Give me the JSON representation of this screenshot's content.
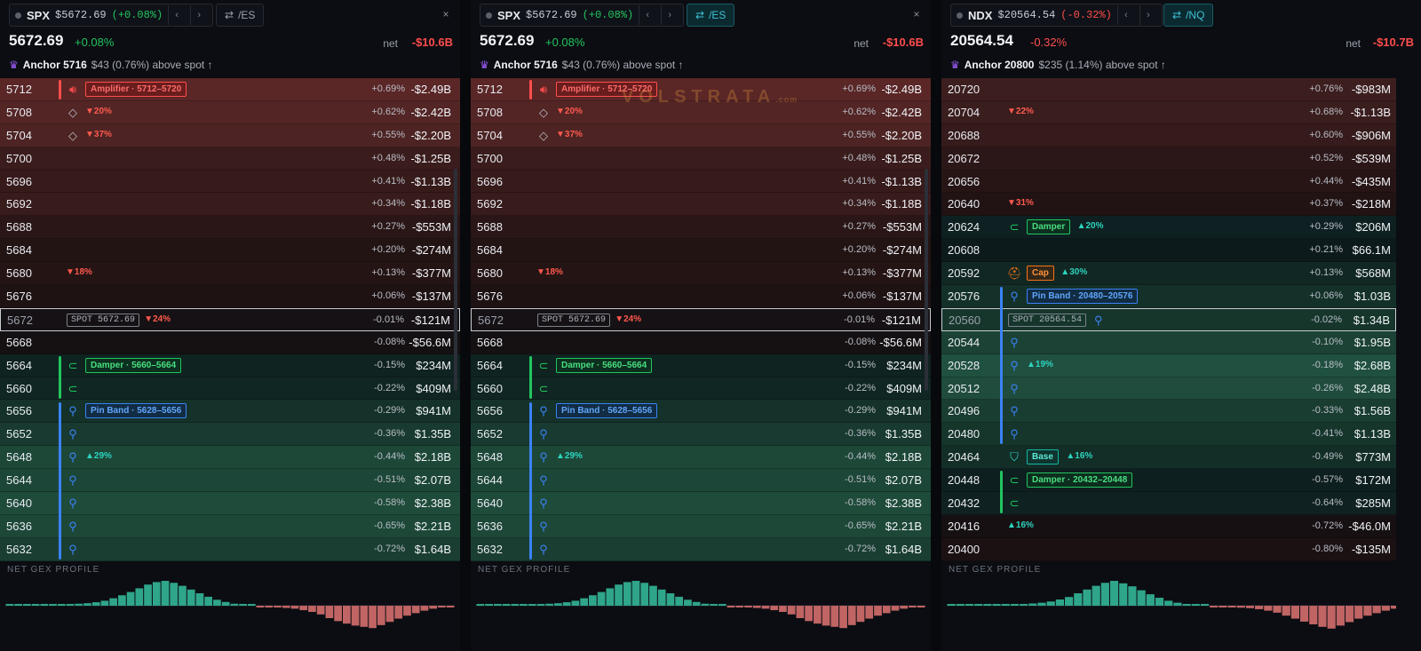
{
  "panels": [
    {
      "tab": {
        "symbol": "SPX",
        "price": "$5672.69",
        "change": "(+0.08%)",
        "change_color": "#22c55e",
        "prev": "‹",
        "next": "›"
      },
      "futures": {
        "label": "/ES",
        "icon": "⇄",
        "active": false
      },
      "close": "×",
      "header": {
        "price": "5672.69",
        "change": "+0.08%",
        "change_color": "#22c55e",
        "net_label": "net",
        "net_value": "-$10.6B"
      },
      "anchor": {
        "icon": "♛",
        "label": "Anchor 5716",
        "detail": "$43 (0.76%) above spot ↑"
      },
      "watermark": "",
      "rows": [
        {
          "strike": "5712",
          "pct": "+0.69%",
          "gex": "-$2.49B",
          "bg": "#5a2626",
          "icon": "speaker-icon",
          "tag": {
            "kind": "amp",
            "text": "Amplifier · 5712–5720"
          }
        },
        {
          "strike": "5708",
          "pct": "+0.62%",
          "gex": "-$2.42B",
          "bg": "#532525",
          "icon": "diamond-icon",
          "arrow": {
            "dir": "dn",
            "text": "▼20%"
          }
        },
        {
          "strike": "5704",
          "pct": "+0.55%",
          "gex": "-$2.20B",
          "bg": "#4d2423",
          "icon": "diamond-icon",
          "arrow": {
            "dir": "dn",
            "text": "▼37%"
          }
        },
        {
          "strike": "5700",
          "pct": "+0.48%",
          "gex": "-$1.25B",
          "bg": "#3a1c1c"
        },
        {
          "strike": "5696",
          "pct": "+0.41%",
          "gex": "-$1.13B",
          "bg": "#371b1b"
        },
        {
          "strike": "5692",
          "pct": "+0.34%",
          "gex": "-$1.18B",
          "bg": "#381b1b"
        },
        {
          "strike": "5688",
          "pct": "+0.27%",
          "gex": "-$553M",
          "bg": "#2a1616"
        },
        {
          "strike": "5684",
          "pct": "+0.20%",
          "gex": "-$274M",
          "bg": "#231414"
        },
        {
          "strike": "5680",
          "pct": "+0.13%",
          "gex": "-$377M",
          "bg": "#251414",
          "arrow": {
            "dir": "dn",
            "text": "▼18%"
          }
        },
        {
          "strike": "5676",
          "pct": "+0.06%",
          "gex": "-$137M",
          "bg": "#1e1213"
        },
        {
          "strike": "5672",
          "pct": "-0.01%",
          "gex": "-$121M",
          "bg": "#161114",
          "spot": "SPOT 5672.69",
          "arrow": {
            "dir": "dn",
            "text": "▼24%"
          }
        },
        {
          "strike": "5668",
          "pct": "-0.08%",
          "gex": "-$56.6M",
          "bg": "#151113"
        },
        {
          "strike": "5664",
          "pct": "-0.15%",
          "gex": "$234M",
          "bg": "#0f2320",
          "icon": "magnet-icon",
          "tag": {
            "kind": "damp",
            "text": "Damper · 5660–5664"
          }
        },
        {
          "strike": "5660",
          "pct": "-0.22%",
          "gex": "$409M",
          "bg": "#102622",
          "icon": "magnet-icon"
        },
        {
          "strike": "5656",
          "pct": "-0.29%",
          "gex": "$941M",
          "bg": "#143229",
          "icon": "pin-icon",
          "tag": {
            "kind": "pin",
            "text": "Pin Band · 5628–5656"
          }
        },
        {
          "strike": "5652",
          "pct": "-0.36%",
          "gex": "$1.35B",
          "bg": "#183a30",
          "icon": "pin-icon"
        },
        {
          "strike": "5648",
          "pct": "-0.44%",
          "gex": "$2.18B",
          "bg": "#1d4838",
          "icon": "pin-icon",
          "arrow": {
            "dir": "up",
            "text": "▲29%"
          }
        },
        {
          "strike": "5644",
          "pct": "-0.51%",
          "gex": "$2.07B",
          "bg": "#1c4637",
          "icon": "pin-icon"
        },
        {
          "strike": "5640",
          "pct": "-0.58%",
          "gex": "$2.38B",
          "bg": "#1f4b3a",
          "icon": "pin-icon"
        },
        {
          "strike": "5636",
          "pct": "-0.65%",
          "gex": "$2.21B",
          "bg": "#1d4838",
          "icon": "pin-icon"
        },
        {
          "strike": "5632",
          "pct": "-0.72%",
          "gex": "$1.64B",
          "bg": "#1a3f32",
          "icon": "pin-icon"
        }
      ],
      "bars": [
        {
          "kind": "damp",
          "from": 12,
          "to": 13
        },
        {
          "kind": "pin",
          "from": 14,
          "to": 20
        },
        {
          "kind": "amp",
          "from": 0,
          "to": 0
        }
      ],
      "profile_label": "NET GEX PROFILE",
      "histogram": [
        0.02,
        0.03,
        0.02,
        0.04,
        0.03,
        0.05,
        0.04,
        0.06,
        0.08,
        0.1,
        0.14,
        0.2,
        0.3,
        0.42,
        0.55,
        0.7,
        0.85,
        0.95,
        1.0,
        0.92,
        0.8,
        0.65,
        0.5,
        0.36,
        0.24,
        0.15,
        0.08,
        0.04,
        0.02,
        -0.02,
        -0.04,
        -0.06,
        -0.09,
        -0.12,
        -0.18,
        -0.25,
        -0.35,
        -0.5,
        -0.62,
        -0.72,
        -0.8,
        -0.85,
        -0.9,
        -0.78,
        -0.65,
        -0.52,
        -0.4,
        -0.3,
        -0.2,
        -0.12,
        -0.06,
        -0.03
      ]
    },
    {
      "tab": {
        "symbol": "SPX",
        "price": "$5672.69",
        "change": "(+0.08%)",
        "change_color": "#22c55e",
        "prev": "‹",
        "next": "›"
      },
      "futures": {
        "label": "/ES",
        "icon": "⇄",
        "active": true
      },
      "close": "×",
      "header": {
        "price": "5672.69",
        "change": "+0.08%",
        "change_color": "#22c55e",
        "net_label": "net",
        "net_value": "-$10.6B"
      },
      "anchor": {
        "icon": "♛",
        "label": "Anchor 5716",
        "detail": "$43 (0.76%) above spot ↑"
      },
      "watermark": "VOLSTRATA",
      "watermark_sub": ".com",
      "rows": [
        {
          "strike": "5712",
          "pct": "+0.69%",
          "gex": "-$2.49B",
          "bg": "#5a2626",
          "icon": "speaker-icon",
          "tag": {
            "kind": "amp",
            "text": "Amplifier · 5712–5720"
          }
        },
        {
          "strike": "5708",
          "pct": "+0.62%",
          "gex": "-$2.42B",
          "bg": "#532525",
          "icon": "diamond-icon",
          "arrow": {
            "dir": "dn",
            "text": "▼20%"
          }
        },
        {
          "strike": "5704",
          "pct": "+0.55%",
          "gex": "-$2.20B",
          "bg": "#4d2423",
          "icon": "diamond-icon",
          "arrow": {
            "dir": "dn",
            "text": "▼37%"
          }
        },
        {
          "strike": "5700",
          "pct": "+0.48%",
          "gex": "-$1.25B",
          "bg": "#3a1c1c"
        },
        {
          "strike": "5696",
          "pct": "+0.41%",
          "gex": "-$1.13B",
          "bg": "#371b1b"
        },
        {
          "strike": "5692",
          "pct": "+0.34%",
          "gex": "-$1.18B",
          "bg": "#381b1b"
        },
        {
          "strike": "5688",
          "pct": "+0.27%",
          "gex": "-$553M",
          "bg": "#2a1616"
        },
        {
          "strike": "5684",
          "pct": "+0.20%",
          "gex": "-$274M",
          "bg": "#231414"
        },
        {
          "strike": "5680",
          "pct": "+0.13%",
          "gex": "-$377M",
          "bg": "#251414",
          "arrow": {
            "dir": "dn",
            "text": "▼18%"
          }
        },
        {
          "strike": "5676",
          "pct": "+0.06%",
          "gex": "-$137M",
          "bg": "#1e1213"
        },
        {
          "strike": "5672",
          "pct": "-0.01%",
          "gex": "-$121M",
          "bg": "#161114",
          "spot": "SPOT 5672.69",
          "arrow": {
            "dir": "dn",
            "text": "▼24%"
          }
        },
        {
          "strike": "5668",
          "pct": "-0.08%",
          "gex": "-$56.6M",
          "bg": "#151113"
        },
        {
          "strike": "5664",
          "pct": "-0.15%",
          "gex": "$234M",
          "bg": "#0f2320",
          "icon": "magnet-icon",
          "tag": {
            "kind": "damp",
            "text": "Damper · 5660–5664"
          }
        },
        {
          "strike": "5660",
          "pct": "-0.22%",
          "gex": "$409M",
          "bg": "#102622",
          "icon": "magnet-icon"
        },
        {
          "strike": "5656",
          "pct": "-0.29%",
          "gex": "$941M",
          "bg": "#143229",
          "icon": "pin-icon",
          "tag": {
            "kind": "pin",
            "text": "Pin Band · 5628–5656"
          }
        },
        {
          "strike": "5652",
          "pct": "-0.36%",
          "gex": "$1.35B",
          "bg": "#183a30",
          "icon": "pin-icon"
        },
        {
          "strike": "5648",
          "pct": "-0.44%",
          "gex": "$2.18B",
          "bg": "#1d4838",
          "icon": "pin-icon",
          "arrow": {
            "dir": "up",
            "text": "▲29%"
          }
        },
        {
          "strike": "5644",
          "pct": "-0.51%",
          "gex": "$2.07B",
          "bg": "#1c4637",
          "icon": "pin-icon"
        },
        {
          "strike": "5640",
          "pct": "-0.58%",
          "gex": "$2.38B",
          "bg": "#1f4b3a",
          "icon": "pin-icon"
        },
        {
          "strike": "5636",
          "pct": "-0.65%",
          "gex": "$2.21B",
          "bg": "#1d4838",
          "icon": "pin-icon"
        },
        {
          "strike": "5632",
          "pct": "-0.72%",
          "gex": "$1.64B",
          "bg": "#1a3f32",
          "icon": "pin-icon"
        }
      ],
      "bars": [
        {
          "kind": "damp",
          "from": 12,
          "to": 13
        },
        {
          "kind": "pin",
          "from": 14,
          "to": 20
        },
        {
          "kind": "amp",
          "from": 0,
          "to": 0
        }
      ],
      "profile_label": "NET GEX PROFILE",
      "histogram": [
        0.02,
        0.03,
        0.02,
        0.04,
        0.03,
        0.05,
        0.04,
        0.06,
        0.08,
        0.1,
        0.14,
        0.2,
        0.3,
        0.42,
        0.55,
        0.7,
        0.85,
        0.95,
        1.0,
        0.92,
        0.8,
        0.65,
        0.5,
        0.36,
        0.24,
        0.15,
        0.08,
        0.04,
        0.02,
        -0.02,
        -0.04,
        -0.06,
        -0.09,
        -0.12,
        -0.18,
        -0.25,
        -0.35,
        -0.5,
        -0.62,
        -0.72,
        -0.8,
        -0.85,
        -0.9,
        -0.78,
        -0.65,
        -0.52,
        -0.4,
        -0.3,
        -0.2,
        -0.12,
        -0.06,
        -0.03
      ]
    },
    {
      "tab": {
        "symbol": "NDX",
        "price": "$20564.54",
        "change": "(-0.32%)",
        "change_color": "#ff4d4d",
        "prev": "‹",
        "next": "›"
      },
      "futures": {
        "label": "/NQ",
        "icon": "⇄",
        "active": true
      },
      "close": "",
      "header": {
        "price": "20564.54",
        "change": "-0.32%",
        "change_color": "#ff4d4d",
        "net_label": "net",
        "net_value": "-$10.7B"
      },
      "anchor": {
        "icon": "♛",
        "label": "Anchor 20800",
        "detail": "$235 (1.14%) above spot ↑"
      },
      "watermark": "",
      "rows": [
        {
          "strike": "20720",
          "pct": "+0.76%",
          "gex": "-$983M",
          "bg": "#3d1e1e"
        },
        {
          "strike": "20704",
          "pct": "+0.68%",
          "gex": "-$1.13B",
          "bg": "#3a1d1d",
          "arrow": {
            "dir": "dn",
            "text": "▼22%"
          }
        },
        {
          "strike": "20688",
          "pct": "+0.60%",
          "gex": "-$906M",
          "bg": "#351b1b"
        },
        {
          "strike": "20672",
          "pct": "+0.52%",
          "gex": "-$539M",
          "bg": "#2c1718"
        },
        {
          "strike": "20656",
          "pct": "+0.44%",
          "gex": "-$435M",
          "bg": "#271516"
        },
        {
          "strike": "20640",
          "pct": "+0.37%",
          "gex": "-$218M",
          "bg": "#211314",
          "arrow": {
            "dir": "dn",
            "text": "▼31%"
          }
        },
        {
          "strike": "20624",
          "pct": "+0.29%",
          "gex": "$206M",
          "bg": "#0e2021",
          "icon": "magnet-icon",
          "tag": {
            "kind": "damp",
            "text": "Damper"
          },
          "arrow": {
            "dir": "up",
            "text": "▲20%"
          }
        },
        {
          "strike": "20608",
          "pct": "+0.21%",
          "gex": "$66.1M",
          "bg": "#0d1a1c"
        },
        {
          "strike": "20592",
          "pct": "+0.13%",
          "gex": "$568M",
          "bg": "#112723",
          "icon": "helmet-icon",
          "tag": {
            "kind": "cap",
            "text": "Cap"
          },
          "arrow": {
            "dir": "up",
            "text": "▲30%"
          }
        },
        {
          "strike": "20576",
          "pct": "+0.06%",
          "gex": "$1.03B",
          "bg": "#143129",
          "icon": "pin-icon",
          "tag": {
            "kind": "pin",
            "text": "Pin Band · 20480–20576"
          }
        },
        {
          "strike": "20560",
          "pct": "-0.02%",
          "gex": "$1.34B",
          "bg": "#16362c",
          "spot": "SPOT 20564.54",
          "icon2": "pin-icon"
        },
        {
          "strike": "20544",
          "pct": "-0.10%",
          "gex": "$1.95B",
          "bg": "#1b4234",
          "icon": "pin-icon"
        },
        {
          "strike": "20528",
          "pct": "-0.18%",
          "gex": "$2.68B",
          "bg": "#205040",
          "icon": "pin-icon",
          "arrow": {
            "dir": "up",
            "text": "▲19%"
          }
        },
        {
          "strike": "20512",
          "pct": "-0.26%",
          "gex": "$2.48B",
          "bg": "#1f4c3c",
          "icon": "pin-icon"
        },
        {
          "strike": "20496",
          "pct": "-0.33%",
          "gex": "$1.56B",
          "bg": "#193d31",
          "icon": "pin-icon"
        },
        {
          "strike": "20480",
          "pct": "-0.41%",
          "gex": "$1.13B",
          "bg": "#16362c",
          "icon": "pin-icon"
        },
        {
          "strike": "20464",
          "pct": "-0.49%",
          "gex": "$773M",
          "bg": "#132e27",
          "icon": "shield-icon",
          "tag": {
            "kind": "base",
            "text": "Base"
          },
          "arrow": {
            "dir": "up",
            "text": "▲16%"
          }
        },
        {
          "strike": "20448",
          "pct": "-0.57%",
          "gex": "$172M",
          "bg": "#0e1f1f",
          "icon": "magnet-icon",
          "tag": {
            "kind": "damp",
            "text": "Damper · 20432–20448"
          }
        },
        {
          "strike": "20432",
          "pct": "-0.64%",
          "gex": "$285M",
          "bg": "#0f2221",
          "icon": "magnet-icon"
        },
        {
          "strike": "20416",
          "pct": "-0.72%",
          "gex": "-$46.0M",
          "bg": "#161012",
          "arrow": {
            "dir": "up",
            "text": "▲16%"
          }
        },
        {
          "strike": "20400",
          "pct": "-0.80%",
          "gex": "-$135M",
          "bg": "#1b1113"
        }
      ],
      "bars": [
        {
          "kind": "pin",
          "from": 9,
          "to": 15
        },
        {
          "kind": "damp",
          "from": 17,
          "to": 18
        }
      ],
      "profile_label": "NET GEX PROFILE",
      "histogram": [
        0.02,
        0.02,
        0.03,
        0.02,
        0.03,
        0.04,
        0.03,
        0.05,
        0.07,
        0.09,
        0.12,
        0.17,
        0.25,
        0.35,
        0.5,
        0.65,
        0.8,
        0.92,
        1.0,
        0.9,
        0.78,
        0.62,
        0.46,
        0.32,
        0.2,
        0.12,
        0.06,
        0.03,
        0.01,
        -0.02,
        -0.03,
        -0.05,
        -0.08,
        -0.1,
        -0.14,
        -0.2,
        -0.28,
        -0.4,
        -0.52,
        -0.64,
        -0.75,
        -0.85,
        -0.92,
        -0.8,
        -0.66,
        -0.52,
        -0.4,
        -0.3,
        -0.2,
        -0.12,
        -0.06,
        -0.03
      ]
    }
  ],
  "colors": {
    "amp": "#ff4d4d",
    "damp": "#22c55e",
    "pin": "#3b82f6",
    "hist_pos": "#2fa58a",
    "hist_neg": "#c06464"
  }
}
